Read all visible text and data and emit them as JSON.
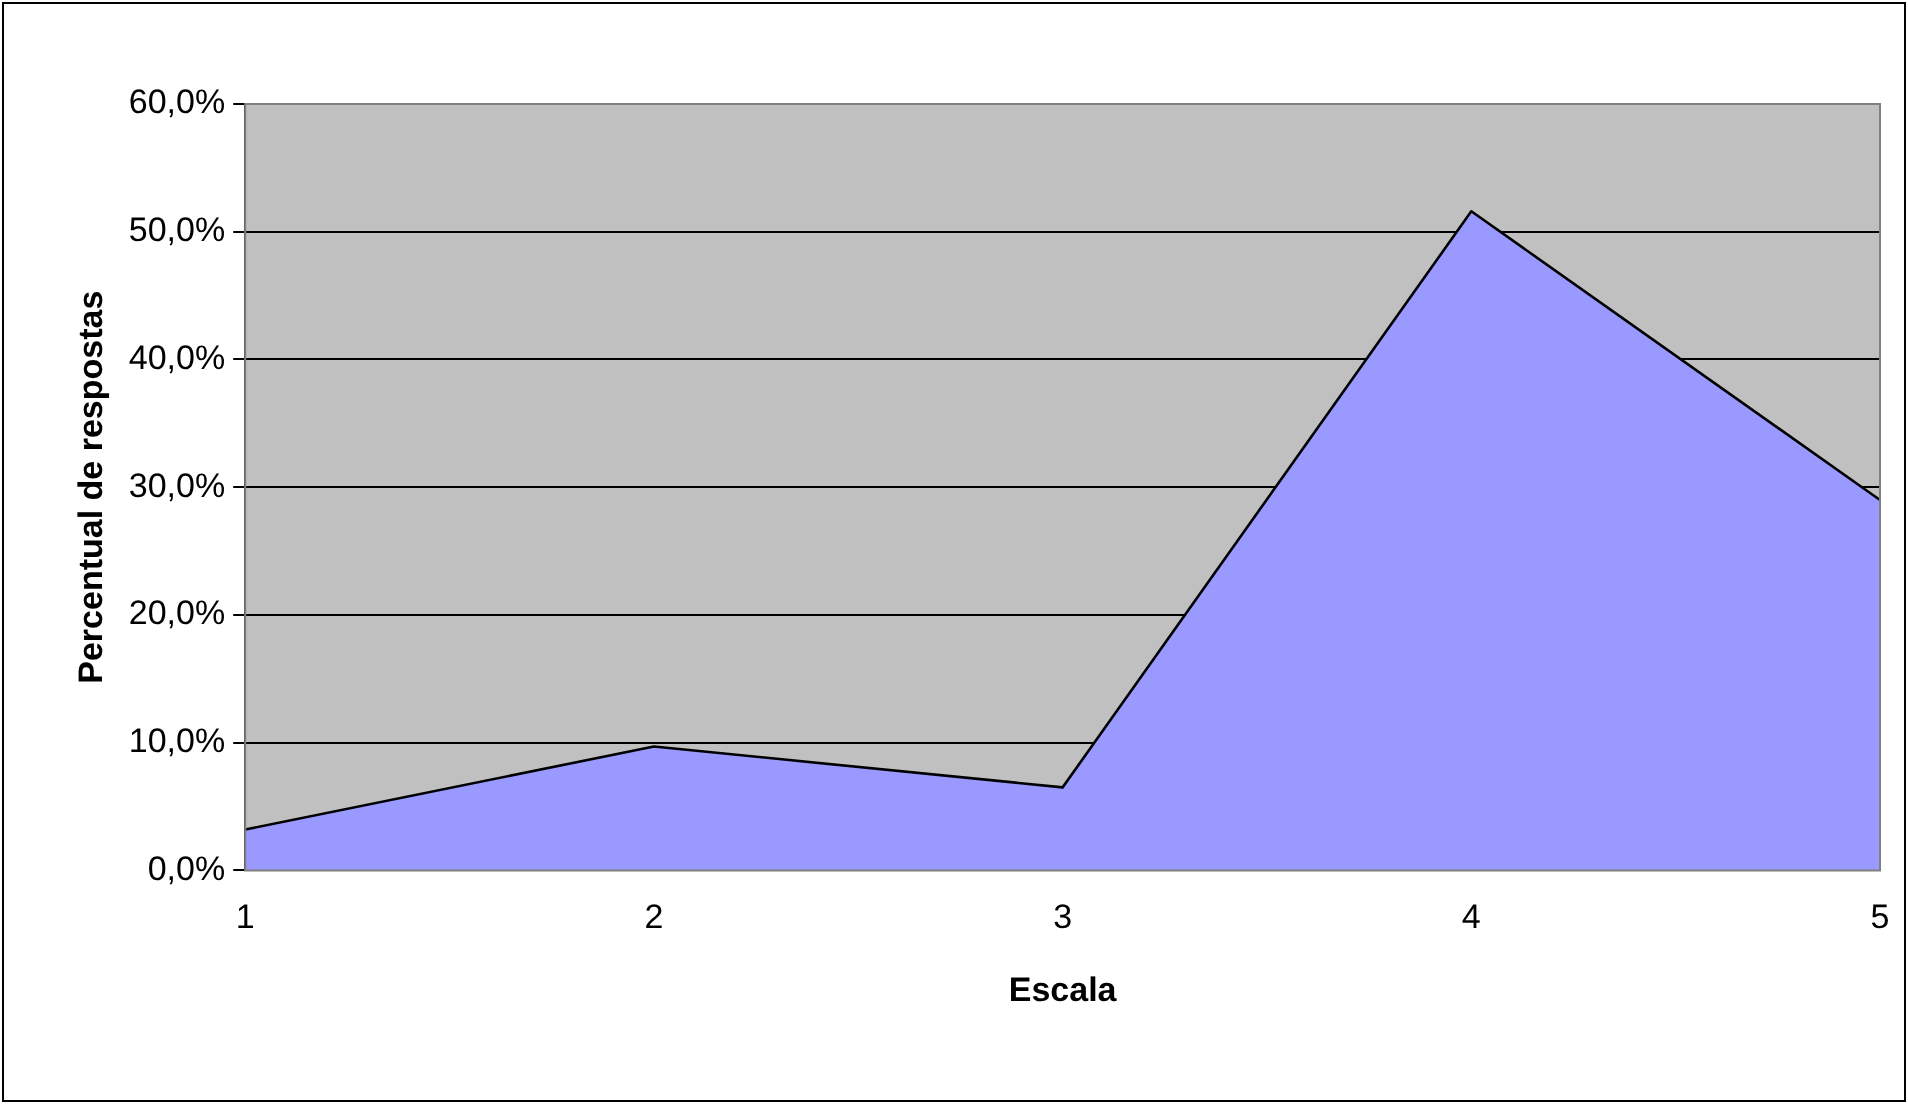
{
  "chart_data": {
    "type": "area",
    "xlabel": "Escala",
    "ylabel": "Percentual de respostas",
    "categories": [
      "1",
      "2",
      "3",
      "4",
      "5"
    ],
    "series": [
      {
        "color": "#9999ff",
        "values": [
          3.2,
          9.7,
          6.5,
          51.6,
          29.0
        ]
      }
    ],
    "ylim": [
      0,
      60
    ],
    "yticks": [
      {
        "value": 0,
        "label": "0,0%"
      },
      {
        "value": 10,
        "label": "10,0%"
      },
      {
        "value": 20,
        "label": "20,0%"
      },
      {
        "value": 30,
        "label": "30,0%"
      },
      {
        "value": 40,
        "label": "40,0%"
      },
      {
        "value": 50,
        "label": "50,0%"
      },
      {
        "value": 60,
        "label": "60,0%"
      }
    ],
    "grid": "y",
    "legend": false,
    "marker": "none"
  }
}
